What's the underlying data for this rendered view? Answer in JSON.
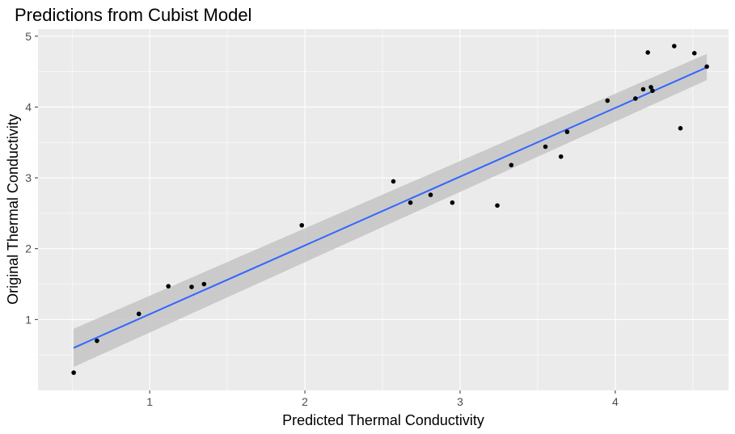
{
  "chart_data": {
    "type": "scatter",
    "title": "Predictions from Cubist Model",
    "xlabel": "Predicted Thermal Conductivity",
    "ylabel": "Original Thermal Conductivity",
    "xlim": [
      0.28,
      4.73
    ],
    "ylim": [
      0.0,
      5.1
    ],
    "x_ticks": [
      1,
      2,
      3,
      4
    ],
    "y_ticks": [
      1,
      2,
      3,
      4,
      5
    ],
    "x_tick_labels": [
      "1",
      "2",
      "3",
      "4"
    ],
    "y_tick_labels": [
      "1",
      "2",
      "3",
      "4",
      "5"
    ],
    "grid": true,
    "legend": "none",
    "points": [
      {
        "x": 0.51,
        "y": 0.25
      },
      {
        "x": 0.66,
        "y": 0.7
      },
      {
        "x": 0.93,
        "y": 1.08
      },
      {
        "x": 1.12,
        "y": 1.47
      },
      {
        "x": 1.27,
        "y": 1.46
      },
      {
        "x": 1.35,
        "y": 1.5
      },
      {
        "x": 1.98,
        "y": 2.33
      },
      {
        "x": 2.57,
        "y": 2.95
      },
      {
        "x": 2.68,
        "y": 2.65
      },
      {
        "x": 2.81,
        "y": 2.76
      },
      {
        "x": 2.95,
        "y": 2.65
      },
      {
        "x": 3.24,
        "y": 2.61
      },
      {
        "x": 3.33,
        "y": 3.18
      },
      {
        "x": 3.55,
        "y": 3.44
      },
      {
        "x": 3.65,
        "y": 3.3
      },
      {
        "x": 3.69,
        "y": 3.65
      },
      {
        "x": 3.95,
        "y": 4.09
      },
      {
        "x": 4.13,
        "y": 4.12
      },
      {
        "x": 4.18,
        "y": 4.25
      },
      {
        "x": 4.21,
        "y": 4.77
      },
      {
        "x": 4.23,
        "y": 4.28
      },
      {
        "x": 4.24,
        "y": 4.23
      },
      {
        "x": 4.38,
        "y": 4.86
      },
      {
        "x": 4.42,
        "y": 3.7
      },
      {
        "x": 4.51,
        "y": 4.76
      },
      {
        "x": 4.59,
        "y": 4.57
      }
    ],
    "fit": {
      "method": "linear",
      "x_range": [
        0.51,
        4.59
      ],
      "y_start": 0.6,
      "y_end": 4.56,
      "ci_low": [
        0.33,
        4.38
      ],
      "ci_high": [
        0.87,
        4.75
      ]
    },
    "colors": {
      "panel": "#ebebeb",
      "grid": "#ffffff",
      "point": "#000000",
      "fit_line": "#3366ff",
      "ribbon": "#c4c4c4"
    }
  }
}
